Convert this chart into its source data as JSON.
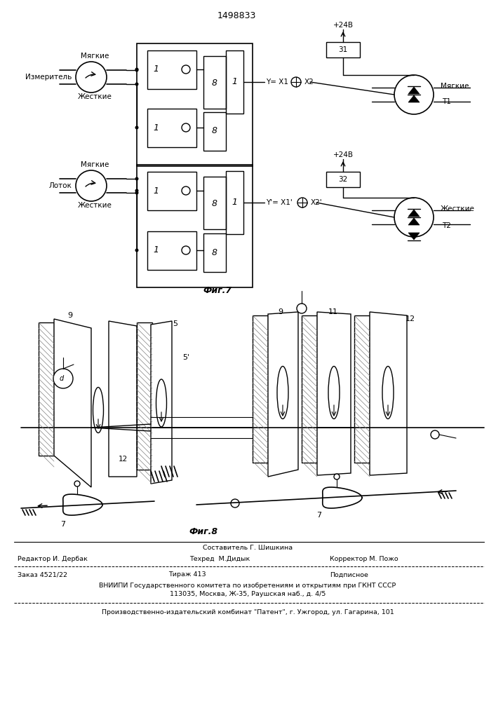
{
  "patent_number": "1498833",
  "background_color": "#ffffff",
  "line_color": "#000000",
  "fig7_label": "Фиг.7",
  "fig8_label": "Фиг.8",
  "editor_line": "Редактор И. Дербак",
  "composer_line": "Составитель Г. Шишкина",
  "techred_line": "Техред  М.Дидык",
  "corrector_line": "Корректор М. Пожо",
  "order_line": "Заказ 4521/22",
  "tirazh_line": "Тираж 413",
  "podpisnoe_line": "Подписное",
  "vnipi_line1": "ВНИИПИ Государственного комитета по изобретениям и открытиям при ГКНТ СССР",
  "vnipi_line2": "113035, Москва, Ж-35, Раушская наб., д. 4/5",
  "factory_line": "Производственно-издательский комбинат \"Патент\", г. Ужгород, ул. Гагарина, 101"
}
